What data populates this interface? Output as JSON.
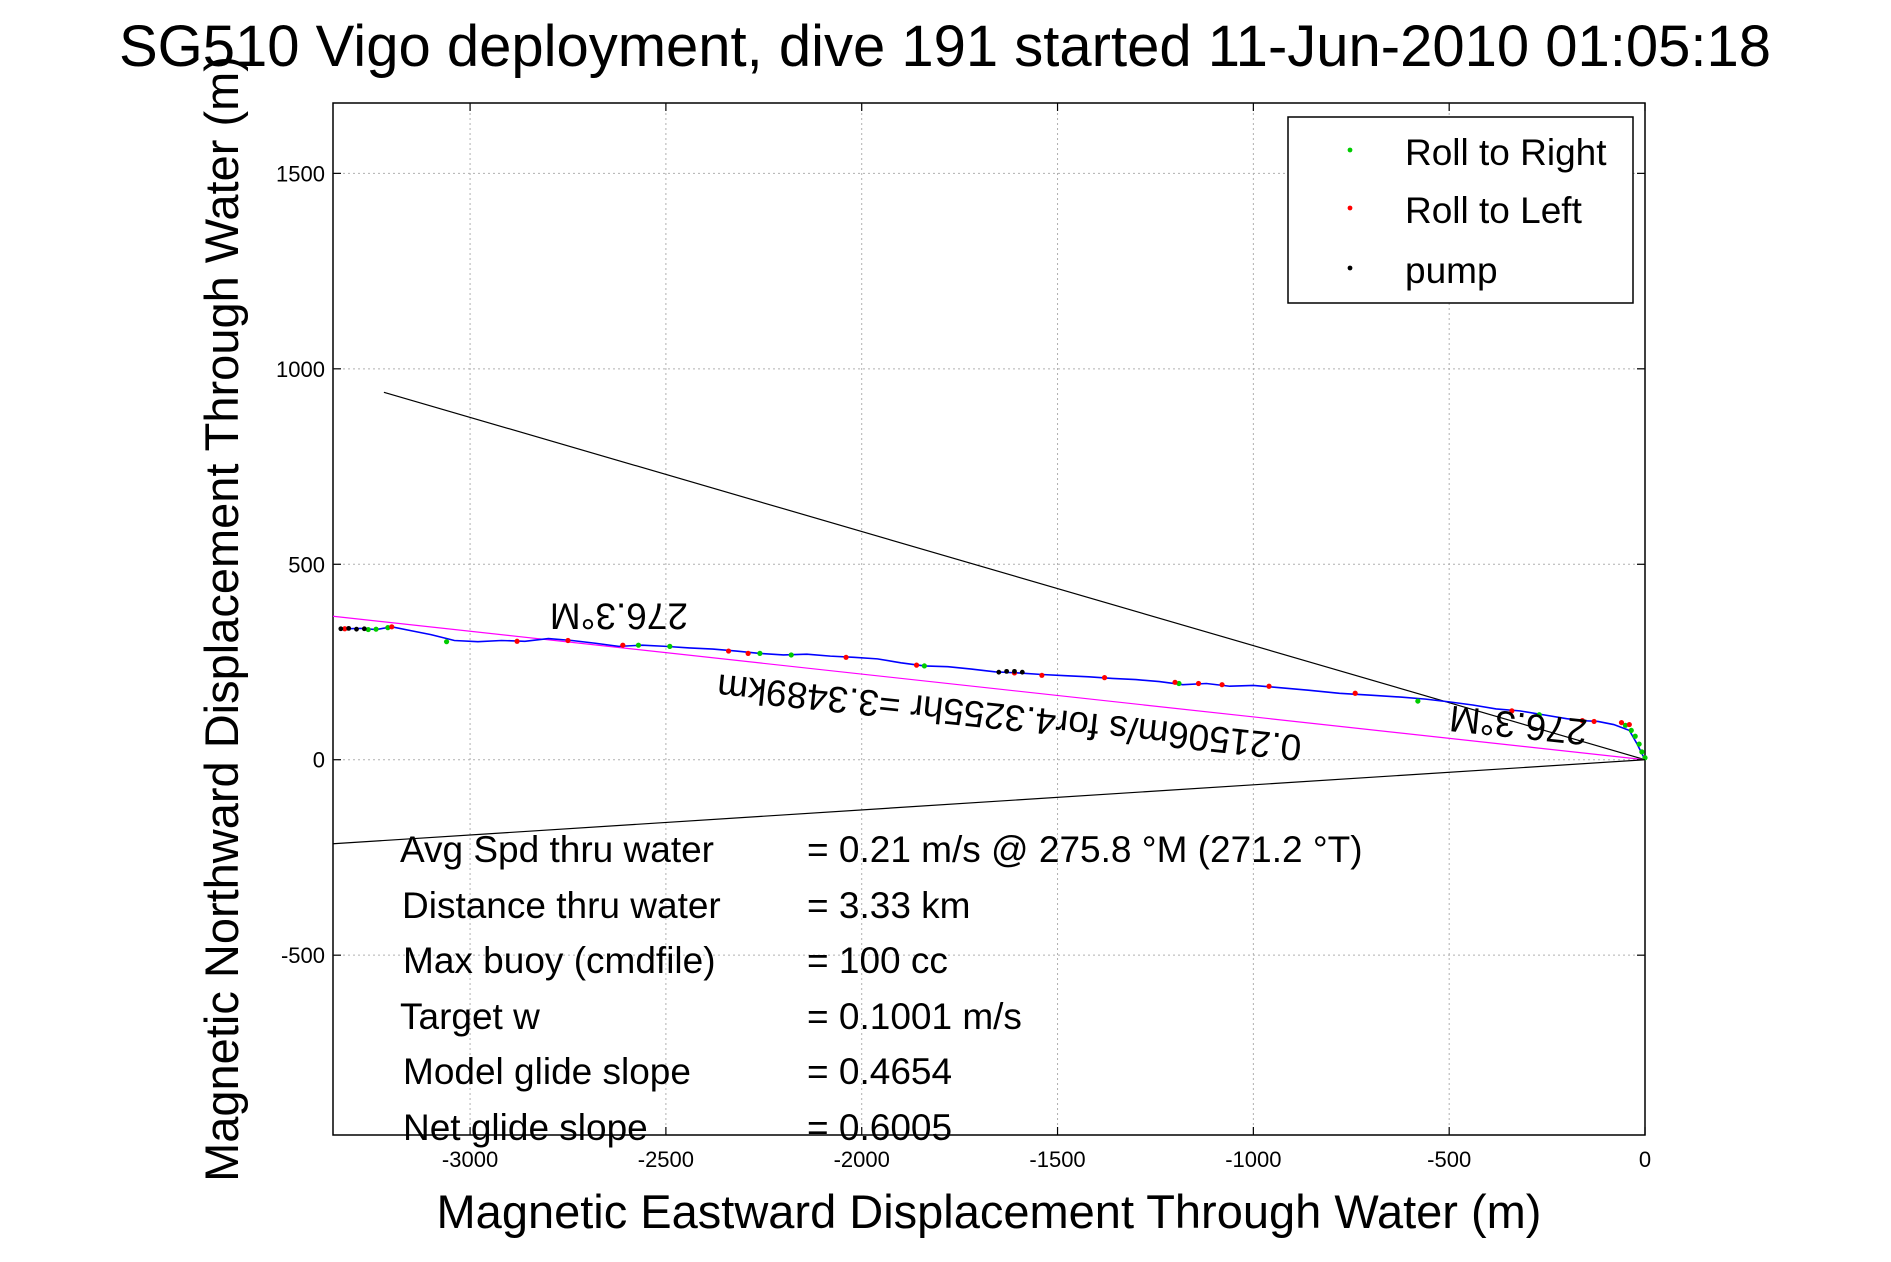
{
  "chart_data": {
    "type": "line",
    "title": "SG510 Vigo deployment, dive 191 started 11-Jun-2010 01:05:18",
    "xlabel": "Magnetic Eastward Displacement Through Water (m)",
    "ylabel": "Magnetic Northward Displacement Through Water (m)",
    "xlim": [
      -3350,
      0
    ],
    "ylim": [
      -960,
      1680
    ],
    "xticks": [
      -3000,
      -2500,
      -2000,
      -1500,
      -1000,
      -500,
      0
    ],
    "yticks": [
      -500,
      0,
      500,
      1000,
      1500
    ],
    "xticklabels": [
      "-3000",
      "-2500",
      "-2000",
      "-1500",
      "-1000",
      "-500",
      "0"
    ],
    "yticklabels": [
      "-500",
      "0",
      "500",
      "1000",
      "1500"
    ],
    "grid": true,
    "legend_position": "top-right",
    "legend": [
      {
        "label": "Roll to Right",
        "color": "#00cc00"
      },
      {
        "label": "Roll to Left",
        "color": "#ff0000"
      },
      {
        "label": "pump",
        "color": "#000000"
      }
    ],
    "track": {
      "color": "#0000ff",
      "x": [
        0,
        -20,
        -40,
        -80,
        -120,
        -160,
        -200,
        -260,
        -320,
        -380,
        -440,
        -500,
        -560,
        -620,
        -700,
        -780,
        -860,
        -940,
        -1000,
        -1060,
        -1120,
        -1180,
        -1240,
        -1300,
        -1360,
        -1420,
        -1480,
        -1540,
        -1600,
        -1660,
        -1720,
        -1780,
        -1840,
        -1900,
        -1960,
        -2020,
        -2080,
        -2140,
        -2200,
        -2260,
        -2320,
        -2380,
        -2440,
        -2500,
        -2560,
        -2620,
        -2680,
        -2740,
        -2800,
        -2860,
        -2920,
        -2980,
        -3040,
        -3100,
        -3150,
        -3200,
        -3240,
        -3280,
        -3320
      ],
      "y": [
        0,
        40,
        75,
        90,
        98,
        100,
        105,
        115,
        125,
        130,
        140,
        148,
        155,
        160,
        165,
        170,
        178,
        185,
        190,
        188,
        195,
        192,
        200,
        205,
        208,
        212,
        215,
        218,
        222,
        225,
        232,
        238,
        240,
        248,
        258,
        262,
        265,
        270,
        268,
        272,
        278,
        283,
        286,
        290,
        293,
        290,
        298,
        305,
        310,
        303,
        305,
        302,
        305,
        320,
        330,
        340,
        333,
        336,
        335
      ]
    },
    "roll_right": {
      "x": [
        0,
        -8,
        -15,
        -25,
        -35,
        -50,
        -270,
        -580,
        -1190,
        -1840,
        -2180,
        -2260,
        -2490,
        -2570,
        -3060,
        -3210,
        -3240,
        -3260
      ],
      "y": [
        5,
        20,
        40,
        60,
        75,
        88,
        115,
        150,
        195,
        240,
        268,
        272,
        290,
        293,
        302,
        338,
        334,
        333
      ]
    },
    "roll_left": {
      "x": [
        -40,
        -60,
        -130,
        -160,
        -340,
        -740,
        -960,
        -1080,
        -1140,
        -1200,
        -1380,
        -1540,
        -1610,
        -1860,
        -2040,
        -2290,
        -2340,
        -2610,
        -2750,
        -2880,
        -3200,
        -3320
      ],
      "y": [
        90,
        95,
        98,
        100,
        125,
        170,
        188,
        192,
        195,
        198,
        210,
        216,
        222,
        242,
        262,
        272,
        278,
        293,
        305,
        303,
        340,
        335
      ]
    },
    "pump": {
      "x": [
        -1650,
        -1630,
        -1610,
        -1590,
        -3270,
        -3290,
        -3310,
        -3330
      ],
      "y": [
        224,
        226,
        226,
        224,
        335,
        334,
        336,
        335
      ]
    },
    "lines": [
      {
        "name": "heading",
        "color": "#000000",
        "x": [
          0,
          -3220
        ],
        "y": [
          0,
          940
        ]
      },
      {
        "name": "heading",
        "color": "#000000",
        "x": [
          0,
          -3350
        ],
        "y": [
          0,
          -215
        ]
      },
      {
        "name": "avg",
        "color": "#ff00ff",
        "x": [
          0,
          -3350
        ],
        "y": [
          0,
          367
        ]
      }
    ],
    "annotations": [
      {
        "text": "276.3°M",
        "x": -2620,
        "y": 400,
        "rotation": 180
      },
      {
        "text": "276.3°M",
        "x": -320,
        "y": 120,
        "rotation": 186
      },
      {
        "text": "0.21506m/s for4.3255hr =3.3489km",
        "x": -1620,
        "y": 140,
        "rotation": 186
      }
    ],
    "stats": [
      {
        "label": "Avg Spd thru water",
        "value": "=  0.21 m/s @ 275.8 °M (271.2 °T)"
      },
      {
        "label": "Distance thru water",
        "value": "=  3.33 km"
      },
      {
        "label": "Max buoy (cmdfile)",
        "value": "= 100 cc"
      },
      {
        "label": "Target w",
        "value": "= 0.1001 m/s"
      },
      {
        "label": "Model glide slope",
        "value": "= 0.4654"
      },
      {
        "label": "Net glide slope",
        "value": "= 0.6005"
      }
    ]
  }
}
